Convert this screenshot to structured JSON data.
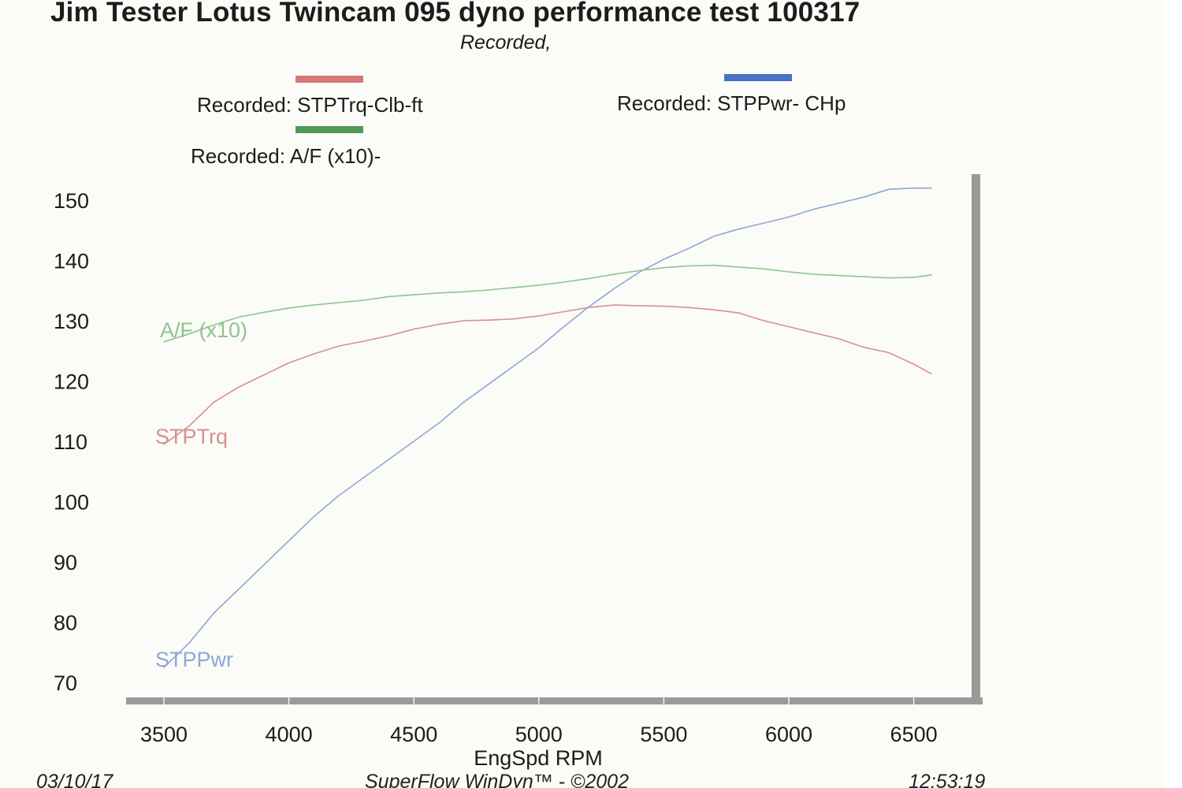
{
  "header": {
    "title": "Jim Tester Lotus Twincam 095 dyno performance test 100317",
    "subtitle": "Recorded,"
  },
  "legend": {
    "torque": "Recorded: STPTrq-Clb-ft",
    "power": "Recorded: STPPwr- CHp",
    "af": "Recorded:  A/F  (x10)-"
  },
  "footer": {
    "date": "03/10/17",
    "software": "SuperFlow WinDyn™ - ©2002",
    "time": "12:53:19"
  },
  "colors": {
    "torque": "#d98f8f",
    "power": "#8ea6d9",
    "af": "#8fc48f",
    "legend_torque": "#d6787a",
    "legend_power": "#4a72c4",
    "legend_af": "#4f9a56",
    "axis": "#9a9a9a"
  },
  "chart_data": {
    "type": "line",
    "xlabel": "EngSpd  RPM",
    "ylabel": "",
    "xlim": [
      3400,
      6650
    ],
    "ylim": [
      66,
      155
    ],
    "x_ticks": [
      3500,
      4000,
      4500,
      5000,
      5500,
      6000,
      6500
    ],
    "y_ticks": [
      70,
      80,
      90,
      100,
      110,
      120,
      130,
      140,
      150
    ],
    "grid": false,
    "legend_position": "top",
    "series": [
      {
        "name": "STPTrq",
        "key": "torque",
        "x": [
          3500,
          3600,
          3700,
          3800,
          3900,
          4000,
          4100,
          4200,
          4300,
          4400,
          4500,
          4600,
          4700,
          4800,
          4900,
          5000,
          5100,
          5200,
          5300,
          5400,
          5500,
          5600,
          5700,
          5800,
          5900,
          6000,
          6100,
          6200,
          6300,
          6400,
          6500,
          6570
        ],
        "values": [
          109.5,
          112.5,
          116.5,
          119,
          121,
          123,
          124.5,
          125.8,
          126.6,
          127.5,
          128.6,
          129.4,
          130,
          130.1,
          130.3,
          130.8,
          131.5,
          132.2,
          132.6,
          132.5,
          132.4,
          132.2,
          131.8,
          131.3,
          130,
          129,
          128,
          127,
          125.6,
          124.7,
          122.8,
          121.2
        ]
      },
      {
        "name": "STPPwr",
        "key": "power",
        "x": [
          3500,
          3600,
          3700,
          3800,
          3900,
          4000,
          4100,
          4200,
          4300,
          4400,
          4500,
          4600,
          4700,
          4800,
          4900,
          5000,
          5100,
          5200,
          5300,
          5400,
          5500,
          5600,
          5700,
          5800,
          5900,
          6000,
          6100,
          6200,
          6300,
          6400,
          6500,
          6570
        ],
        "values": [
          72.5,
          76.5,
          81.5,
          85.5,
          89.5,
          93.5,
          97.5,
          101,
          104,
          107,
          110,
          113,
          116.5,
          119.5,
          122.5,
          125.5,
          129,
          132.3,
          135.3,
          138,
          140.2,
          142,
          144,
          145.2,
          146.2,
          147.2,
          148.5,
          149.5,
          150.5,
          151.8,
          152,
          152
        ]
      },
      {
        "name": "A/F  (x10)",
        "key": "af",
        "x": [
          3500,
          3600,
          3700,
          3800,
          3900,
          4000,
          4100,
          4200,
          4300,
          4400,
          4500,
          4600,
          4700,
          4800,
          4900,
          5000,
          5100,
          5200,
          5300,
          5400,
          5500,
          5600,
          5700,
          5800,
          5900,
          6000,
          6100,
          6200,
          6300,
          6400,
          6500,
          6570
        ],
        "values": [
          126.5,
          127.8,
          129.3,
          130.6,
          131.4,
          132.1,
          132.6,
          133,
          133.4,
          134,
          134.3,
          134.6,
          134.8,
          135.1,
          135.5,
          135.9,
          136.4,
          137,
          137.7,
          138.3,
          138.8,
          139.1,
          139.2,
          138.9,
          138.6,
          138.1,
          137.7,
          137.5,
          137.3,
          137.1,
          137.2,
          137.6
        ]
      }
    ]
  }
}
